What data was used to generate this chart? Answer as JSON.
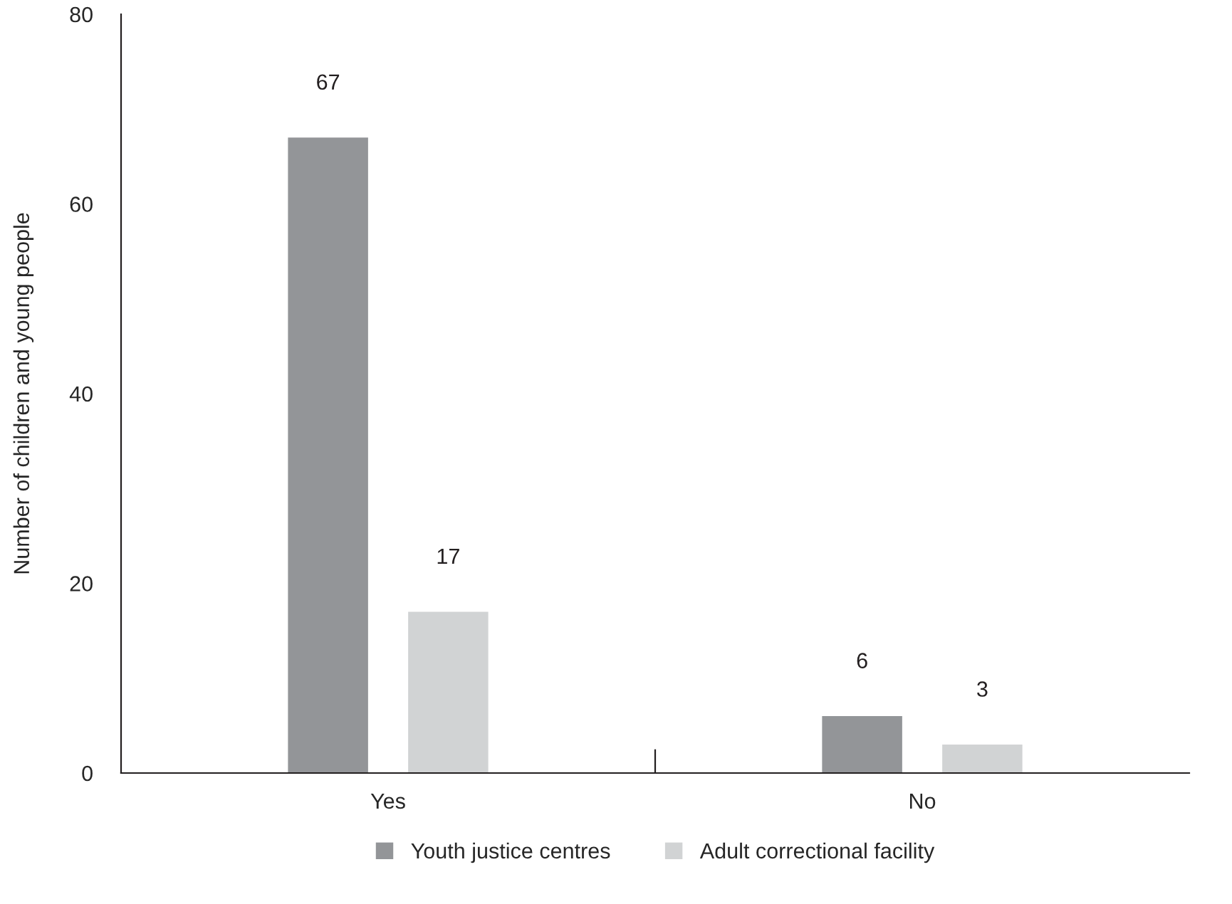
{
  "chart_data": {
    "type": "bar",
    "ylabel": "Number of children and young people",
    "categories": [
      "Yes",
      "No"
    ],
    "series": [
      {
        "name": "Youth justice centres",
        "color": "#939598",
        "values": [
          67,
          6
        ]
      },
      {
        "name": "Adult correctional facility",
        "color": "#d1d3d4",
        "values": [
          17,
          3
        ]
      }
    ],
    "ylim": [
      0,
      80
    ],
    "yticks": [
      0,
      20,
      40,
      60,
      80
    ],
    "grid": false,
    "legend": "bottom",
    "data_labels": true
  }
}
